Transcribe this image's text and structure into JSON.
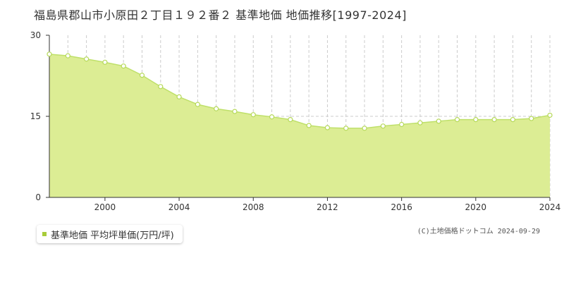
{
  "title": "福島県郡山市小原田２丁目１９２番２ 基準地価 地価推移[1997-2024]",
  "legend": {
    "label": "基準地価 平均坪単価(万円/坪)",
    "color": "#a8cc3a"
  },
  "copyright": "(C)土地価格ドットコム 2024-09-29",
  "colors": {
    "fill": "#dced94",
    "line": "#bfe06a",
    "point": "#ffffff",
    "point_stroke": "#b6d95a",
    "grid": "#cccccc"
  },
  "chart_data": {
    "type": "area",
    "x": [
      1997,
      1998,
      1999,
      2000,
      2001,
      2002,
      2003,
      2004,
      2005,
      2006,
      2007,
      2008,
      2009,
      2010,
      2011,
      2012,
      2013,
      2014,
      2015,
      2016,
      2017,
      2018,
      2019,
      2020,
      2021,
      2022,
      2023,
      2024
    ],
    "series": [
      {
        "values": [
          26.5,
          26.2,
          25.6,
          25.0,
          24.3,
          22.6,
          20.5,
          18.6,
          17.2,
          16.4,
          15.9,
          15.3,
          14.9,
          14.4,
          13.3,
          12.9,
          12.8,
          12.8,
          13.2,
          13.5,
          13.8,
          14.1,
          14.4,
          14.4,
          14.4,
          14.4,
          14.6,
          15.2
        ]
      }
    ],
    "xlim": [
      1997,
      2024
    ],
    "ylim": [
      0,
      30
    ],
    "x_tick_labels": [
      "2000",
      "2004",
      "2008",
      "2012",
      "2016",
      "2020",
      "2024"
    ],
    "y_tick_labels": [
      "0",
      "15",
      "30"
    ],
    "title": "福島県郡山市小原田２丁目１９２番２ 基準地価 地価推移[1997-2024]",
    "xlabel": "",
    "ylabel": "",
    "grid": "vertical dashed every year, horizontal dashed at 15"
  }
}
